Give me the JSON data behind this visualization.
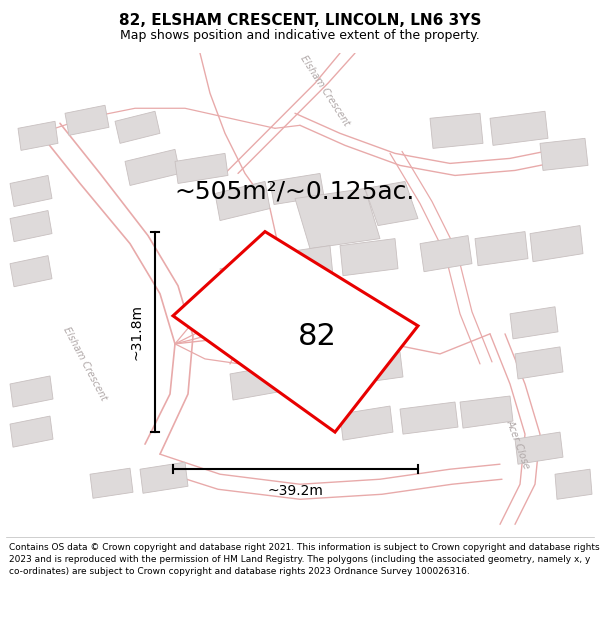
{
  "title": "82, ELSHAM CRESCENT, LINCOLN, LN6 3YS",
  "subtitle": "Map shows position and indicative extent of the property.",
  "area_text": "~505m²/~0.125ac.",
  "number_label": "82",
  "dim_width": "~39.2m",
  "dim_height": "~31.8m",
  "footer": "Contains OS data © Crown copyright and database right 2021. This information is subject to Crown copyright and database rights 2023 and is reproduced with the permission of HM Land Registry. The polygons (including the associated geometry, namely x, y co-ordinates) are subject to Crown copyright and database rights 2023 Ordnance Survey 100026316.",
  "bg_color": "#f2f0f0",
  "title_fontsize": 11,
  "subtitle_fontsize": 9,
  "area_fontsize": 18,
  "number_fontsize": 22,
  "dim_fontsize": 10,
  "footer_fontsize": 6.5,
  "road_color": "#e8aaaa",
  "road_fill": "#f5e8e8",
  "building_color": "#dedada",
  "building_edge": "#c8c0c0",
  "highlight_color": "#e80000",
  "road_label_color": "#b0a8a8"
}
